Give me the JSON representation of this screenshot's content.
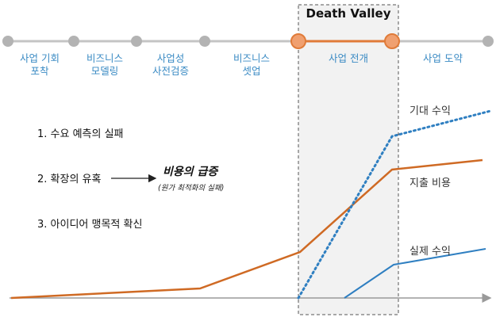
{
  "stages": [
    {
      "label": "사업 기회\n포착",
      "highlight": false
    },
    {
      "label": "비즈니스\n모델링",
      "highlight": false
    },
    {
      "label": "사업성\n사전검증",
      "highlight": false
    },
    {
      "label": "비즈니스\n셋업",
      "highlight": false
    },
    {
      "label": "사업 전개",
      "highlight": true
    },
    {
      "label": "사업 도약",
      "highlight": false
    }
  ],
  "death_valley": {
    "title": "Death Valley"
  },
  "notes": [
    "1. 수요 예측의 실패",
    "2. 확장의 유혹",
    "3. 아이디어 맹목적 확신"
  ],
  "callout": {
    "main": "비용의 급증",
    "sub": "(원가 최적화의 실패)"
  },
  "series": {
    "expected_revenue": "기대 수익",
    "expense": "지출 비용",
    "actual_revenue": "실제 수익"
  },
  "colors": {
    "stage_text": "#3b8bc4",
    "node_gray": "#b3b3b3",
    "highlight": "#e07b39",
    "cost_line": "#cf6a24",
    "blue_line": "#2f7fc1",
    "valley_fill": "#f2f2f2"
  }
}
